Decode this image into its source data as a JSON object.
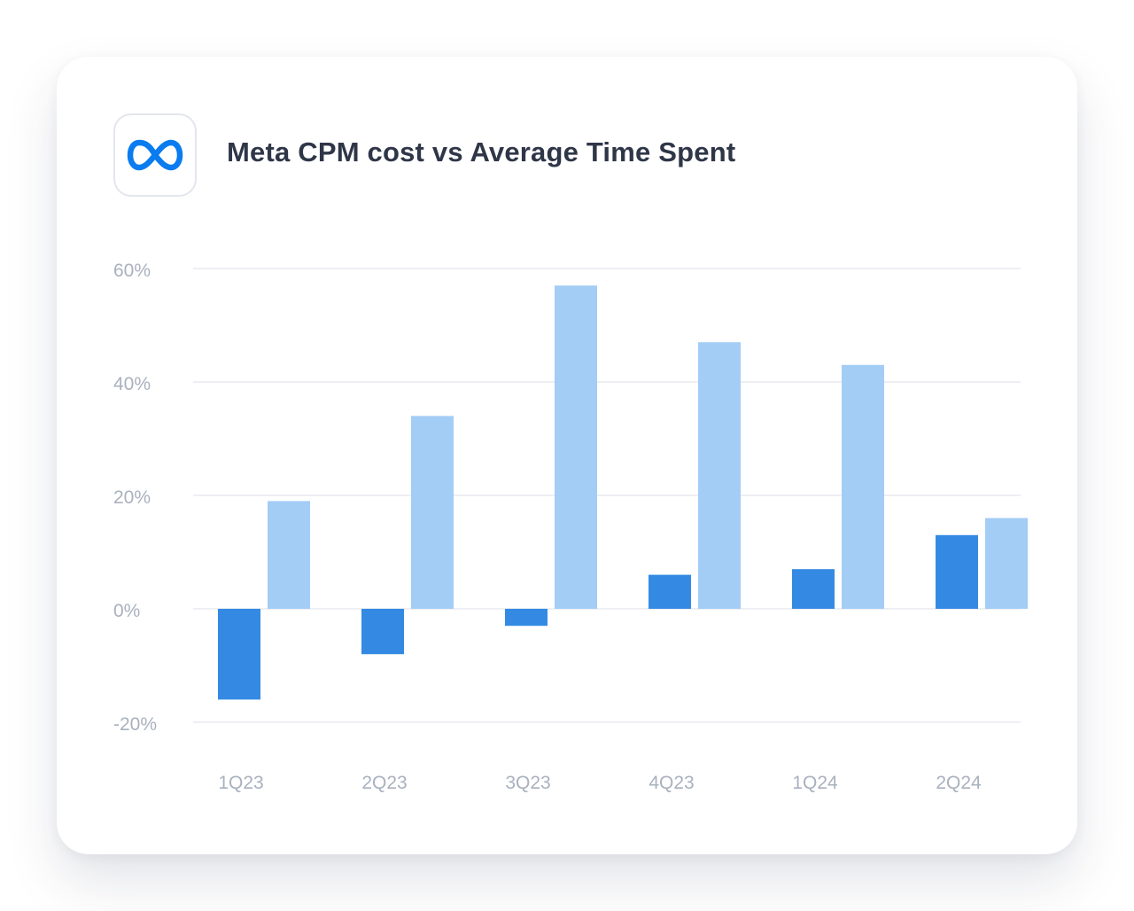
{
  "header": {
    "title": "Meta CPM cost vs Average Time Spent",
    "logo_icon": "meta-logo-icon"
  },
  "colors": {
    "series_dark": "#348ae3",
    "series_light": "#a3cdf5",
    "gridline": "#e8eaef",
    "tick_text": "#a9b1bf",
    "title_text": "#2f3648",
    "logo_blue": "#0a7cf0"
  },
  "chart_data": {
    "type": "bar",
    "title": "Meta CPM cost vs Average Time Spent",
    "xlabel": "",
    "ylabel": "",
    "categories": [
      "1Q23",
      "2Q23",
      "3Q23",
      "4Q23",
      "1Q24",
      "2Q24"
    ],
    "series": [
      {
        "values": [
          -16,
          -8,
          -3,
          6,
          7,
          13
        ]
      },
      {
        "values": [
          19,
          34,
          57,
          47,
          43,
          16
        ]
      }
    ],
    "ylim": [
      -20,
      60
    ],
    "yticks": [
      60,
      40,
      20,
      0,
      -20
    ],
    "ytick_labels": [
      "60%",
      "40%",
      "20%",
      "0%",
      "-20%"
    ],
    "grid": true,
    "legend": "none"
  }
}
